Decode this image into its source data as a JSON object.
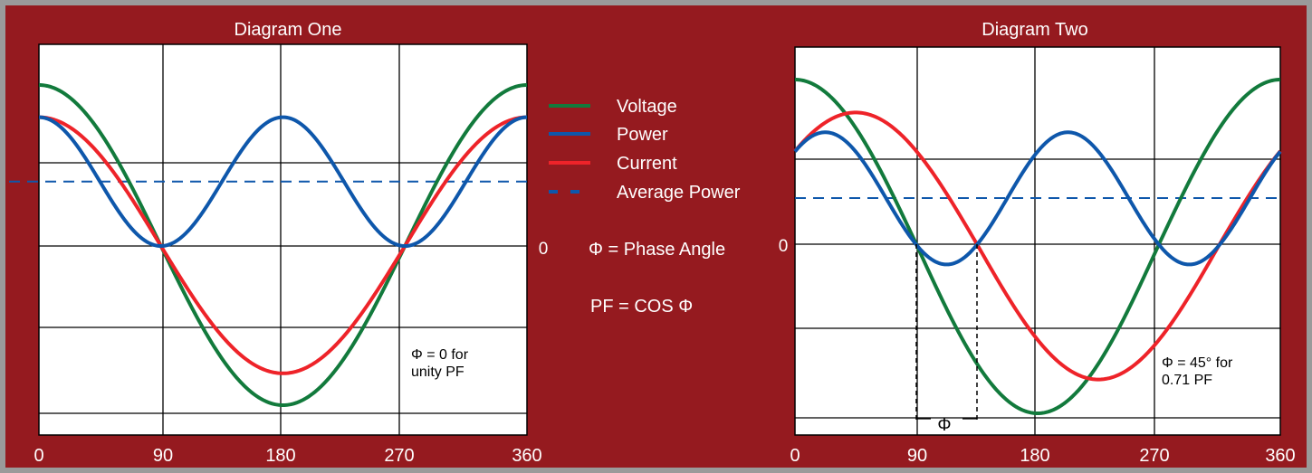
{
  "colors": {
    "frame": "#9a9a9a",
    "background": "#951a1f",
    "plot_area": "#ffffff",
    "grid": "#000000",
    "voltage": "#127a3c",
    "power": "#0e57ab",
    "current": "#ee2329",
    "average_power": "#0e57ab",
    "label_text": "#ffffff"
  },
  "legend": {
    "items": [
      {
        "key": "voltage",
        "label": "Voltage",
        "style": "solid"
      },
      {
        "key": "power",
        "label": "Power",
        "style": "solid"
      },
      {
        "key": "current",
        "label": "Current",
        "style": "solid"
      },
      {
        "key": "average_power",
        "label": "Average Power",
        "style": "dashed"
      }
    ],
    "phase_def": "Φ = Phase Angle",
    "pf_def": "PF = COS Φ"
  },
  "chart_data": [
    {
      "type": "line",
      "title": "Diagram One",
      "x_ticks": [
        "0",
        "90",
        "180",
        "270",
        "360"
      ],
      "zero_label": "0",
      "xlim": [
        0,
        360
      ],
      "ylim": [
        -1.0,
        1.0
      ],
      "grid": true,
      "phase_deg": 0,
      "series": [
        {
          "key": "voltage",
          "name": "Voltage",
          "function": "cos",
          "amplitude": 1.0,
          "phase_deg": 0
        },
        {
          "key": "current",
          "name": "Current",
          "function": "cos",
          "amplitude": 0.8,
          "phase_deg": 0
        },
        {
          "key": "power",
          "name": "Power",
          "function": "voltage*current",
          "avg": 0.4
        },
        {
          "key": "average_power",
          "name": "Average Power",
          "value": 0.4
        }
      ],
      "annotation": [
        "Φ = 0 for",
        "unity PF"
      ]
    },
    {
      "type": "line",
      "title": "Diagram Two",
      "x_ticks": [
        "0",
        "90",
        "180",
        "270",
        "360"
      ],
      "zero_label": "0",
      "xlim": [
        0,
        360
      ],
      "ylim": [
        -1.0,
        1.0
      ],
      "grid": true,
      "phase_deg": 45,
      "series": [
        {
          "key": "voltage",
          "name": "Voltage",
          "function": "cos",
          "amplitude": 1.0,
          "phase_deg": 0
        },
        {
          "key": "current",
          "name": "Current",
          "function": "cos",
          "amplitude": 0.8,
          "phase_deg": 45
        },
        {
          "key": "power",
          "name": "Power",
          "function": "voltage*current",
          "avg": 0.28
        },
        {
          "key": "average_power",
          "name": "Average Power",
          "value": 0.28
        }
      ],
      "annotation": [
        "Φ = 45° for",
        "0.71 PF"
      ],
      "phase_marker_label": "Φ"
    }
  ]
}
